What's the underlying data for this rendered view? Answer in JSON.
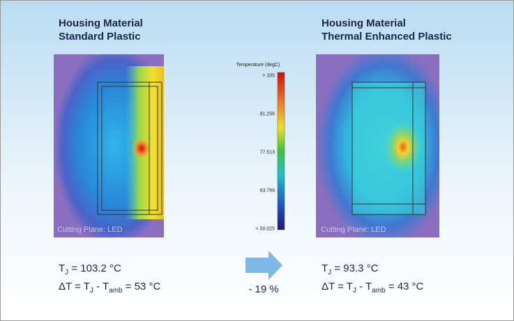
{
  "left": {
    "title": [
      "Housing Material",
      "Standard Plastic"
    ],
    "plane_label": "Cutting Plane: LED",
    "tj": [
      "T",
      "J",
      " = 103.2 °C"
    ],
    "dt": [
      "ΔT = T",
      "J",
      " - T",
      "amb",
      " = 53 °C"
    ]
  },
  "legend": {
    "title": "Temperature (degC)",
    "ticks": [
      "> 105",
      "91.256",
      "77.513",
      "63.769",
      "< 50.025"
    ]
  },
  "change": "- 19 %",
  "right": {
    "title": [
      "Housing Material",
      "Thermal Enhanced Plastic"
    ],
    "plane_label": "Cutting Plane: LED",
    "tj": [
      "T",
      "J",
      " = 93.3 °C"
    ],
    "dt": [
      "ΔT = T",
      "J",
      " - T",
      "amb",
      " = 43 °C"
    ]
  }
}
